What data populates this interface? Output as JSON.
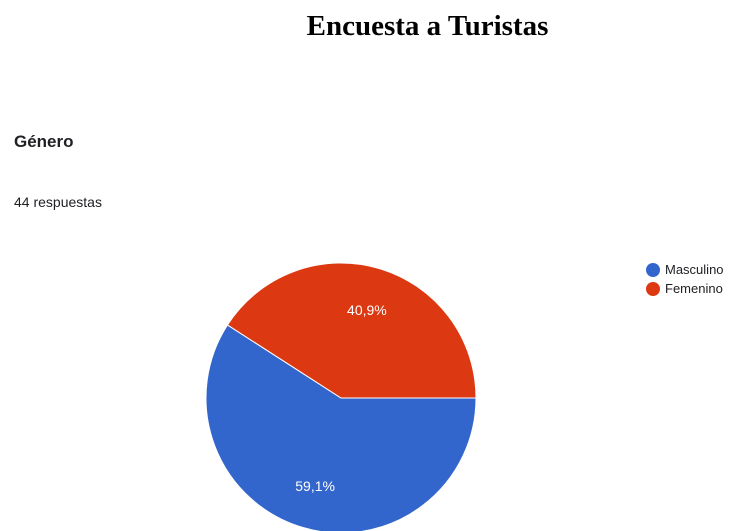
{
  "document": {
    "title": "Encuesta a Turistas"
  },
  "question": {
    "title": "Género",
    "responses": "44 respuestas"
  },
  "legend": {
    "items": [
      {
        "label": "Masculino",
        "color": "#3366cc"
      },
      {
        "label": "Femenino",
        "color": "#dc3912"
      }
    ]
  },
  "chart_data": {
    "type": "pie",
    "title": "Género",
    "subtitle": "44 respuestas",
    "categories": [
      "Masculino",
      "Femenino"
    ],
    "values": [
      59.1,
      40.9
    ],
    "labels": [
      "59,1%",
      "40,9%"
    ],
    "colors": [
      "#3366cc",
      "#dc3912"
    ],
    "legend_position": "right"
  }
}
